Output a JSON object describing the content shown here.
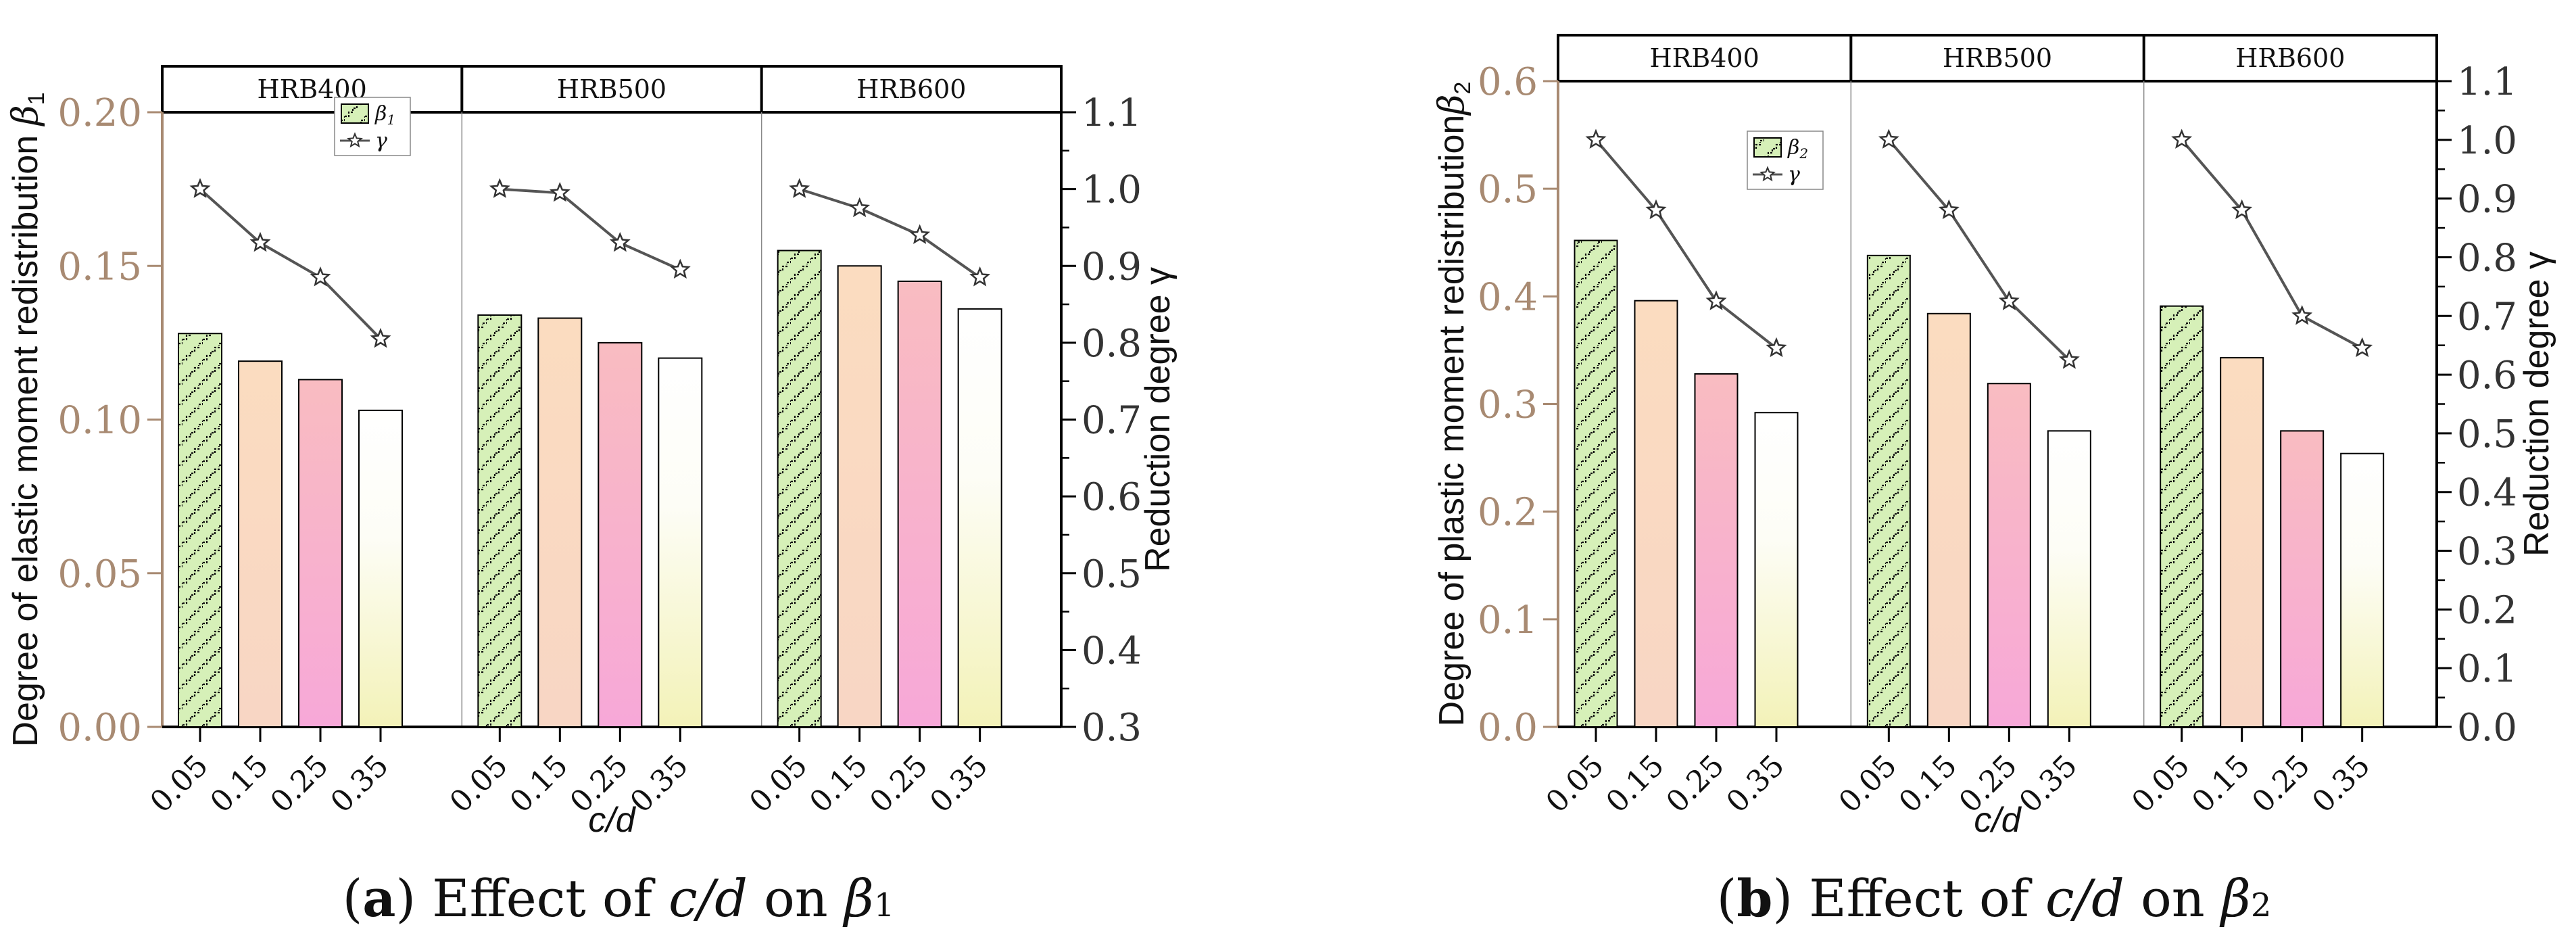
{
  "chart_data": [
    {
      "id": "a",
      "type": "bar",
      "caption_letter": "a",
      "caption_text": "Effect of ",
      "caption_cd": "c/d",
      "caption_on": " on ",
      "caption_beta": "β",
      "caption_sub": "1",
      "groups": [
        "HRB400",
        "HRB500",
        "HRB600"
      ],
      "categories": [
        "0.05",
        "0.15",
        "0.25",
        "0.35"
      ],
      "xlabel": "c/d",
      "ylabel": "Degree of elastic moment redistribution ",
      "ylabel_symbol": "β",
      "ylabel_sub": "1",
      "y2label": "Reduction degree γ",
      "ylim": [
        0,
        0.2
      ],
      "yticks": [
        "0.00",
        "0.05",
        "0.10",
        "0.15",
        "0.20"
      ],
      "y2lim": [
        0.3,
        1.1
      ],
      "y2ticks": [
        "0.3",
        "0.4",
        "0.5",
        "0.6",
        "0.7",
        "0.8",
        "0.9",
        "1.0",
        "1.1"
      ],
      "legend": {
        "bar_symbol": "β",
        "bar_sub": "1",
        "line_label": "γ",
        "position": "top-center"
      },
      "series": [
        {
          "name": "β1",
          "kind": "bar",
          "values": [
            [
              0.128,
              0.119,
              0.113,
              0.103
            ],
            [
              0.134,
              0.133,
              0.125,
              0.12
            ],
            [
              0.155,
              0.15,
              0.145,
              0.136
            ]
          ]
        },
        {
          "name": "γ",
          "kind": "line",
          "values": [
            [
              1.0,
              0.93,
              0.885,
              0.805
            ],
            [
              1.0,
              0.995,
              0.93,
              0.895
            ],
            [
              1.0,
              0.975,
              0.94,
              0.885
            ]
          ]
        }
      ]
    },
    {
      "id": "b",
      "type": "bar",
      "caption_letter": "b",
      "caption_text": "Effect of ",
      "caption_cd": "c/d",
      "caption_on": " on ",
      "caption_beta": "β",
      "caption_sub": "2",
      "groups": [
        "HRB400",
        "HRB500",
        "HRB600"
      ],
      "categories": [
        "0.05",
        "0.15",
        "0.25",
        "0.35"
      ],
      "xlabel": "c/d",
      "ylabel": "Degree of plastic moment redistribution",
      "ylabel_symbol": "β",
      "ylabel_sub": "2",
      "y2label": "Reduction degree γ",
      "ylim": [
        0,
        0.6
      ],
      "yticks": [
        "0.0",
        "0.1",
        "0.2",
        "0.3",
        "0.4",
        "0.5",
        "0.6"
      ],
      "y2lim": [
        0,
        1.1
      ],
      "y2ticks": [
        "0.0",
        "0.1",
        "0.2",
        "0.3",
        "0.4",
        "0.5",
        "0.6",
        "0.7",
        "0.8",
        "0.9",
        "1.0",
        "1.1"
      ],
      "legend": {
        "bar_symbol": "β",
        "bar_sub": "2",
        "line_label": "γ",
        "position": "top-center"
      },
      "series": [
        {
          "name": "β2",
          "kind": "bar",
          "values": [
            [
              0.452,
              0.396,
              0.328,
              0.292
            ],
            [
              0.438,
              0.384,
              0.319,
              0.275
            ],
            [
              0.391,
              0.343,
              0.275,
              0.254
            ]
          ]
        },
        {
          "name": "γ",
          "kind": "line",
          "values": [
            [
              1.0,
              0.88,
              0.725,
              0.645
            ],
            [
              1.0,
              0.88,
              0.725,
              0.625
            ],
            [
              1.0,
              0.88,
              0.7,
              0.645
            ]
          ]
        }
      ]
    }
  ]
}
